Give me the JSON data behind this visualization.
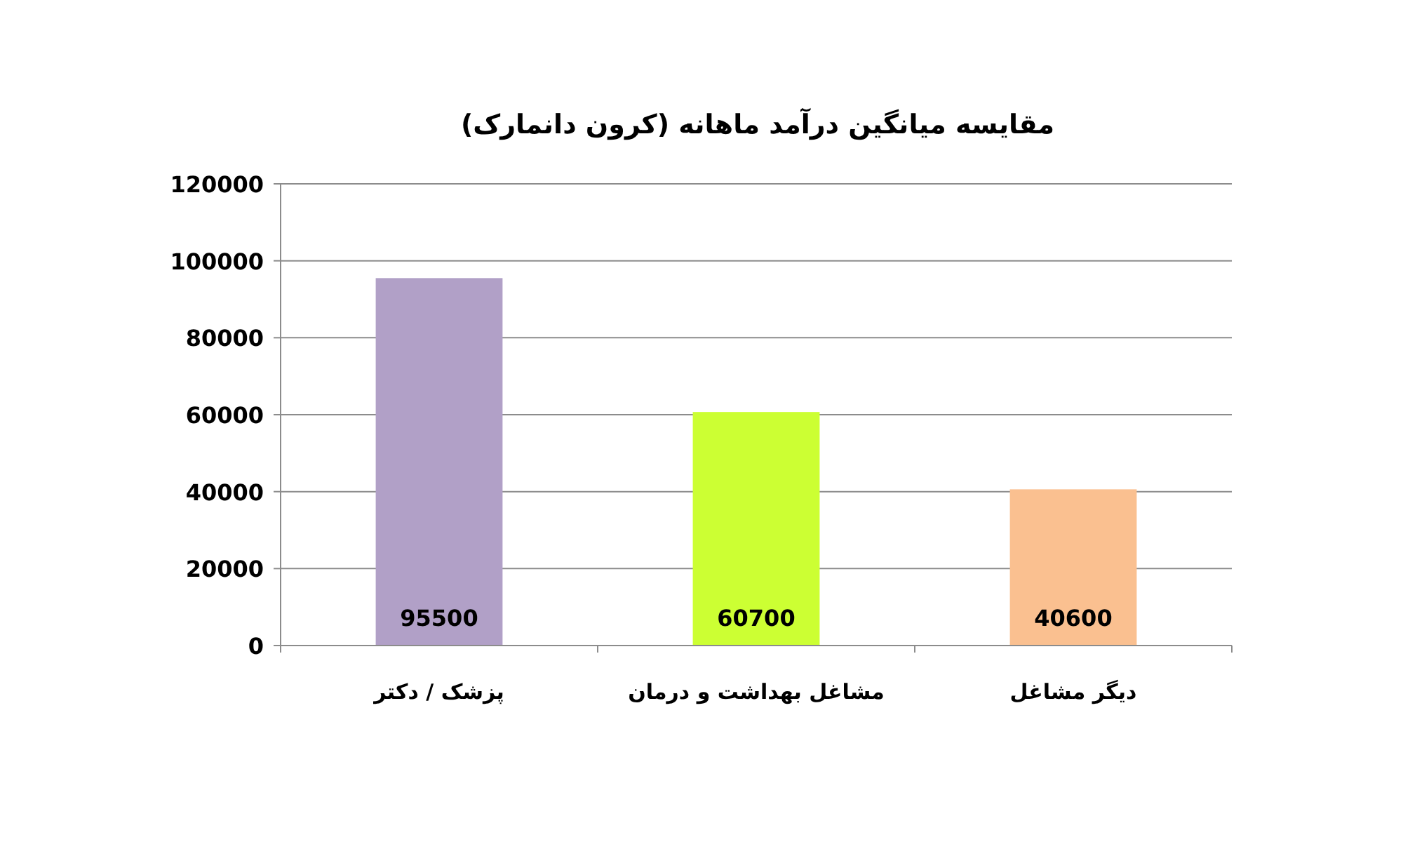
{
  "chart_data": {
    "type": "bar",
    "title": "مقایسه میانگین درآمد ماهانه (کرون دانمارک)",
    "categories": [
      "پزشک / دکتر",
      "مشاغل بهداشت و درمان",
      "دیگر مشاغل"
    ],
    "values": [
      95500,
      60700,
      40600
    ],
    "colors": [
      "#b1a0c7",
      "#ccff33",
      "#fac090"
    ],
    "ylim": [
      0,
      120000
    ],
    "yticks": [
      0,
      20000,
      40000,
      60000,
      80000,
      100000,
      120000
    ],
    "grid": "y",
    "data_labels": true
  }
}
